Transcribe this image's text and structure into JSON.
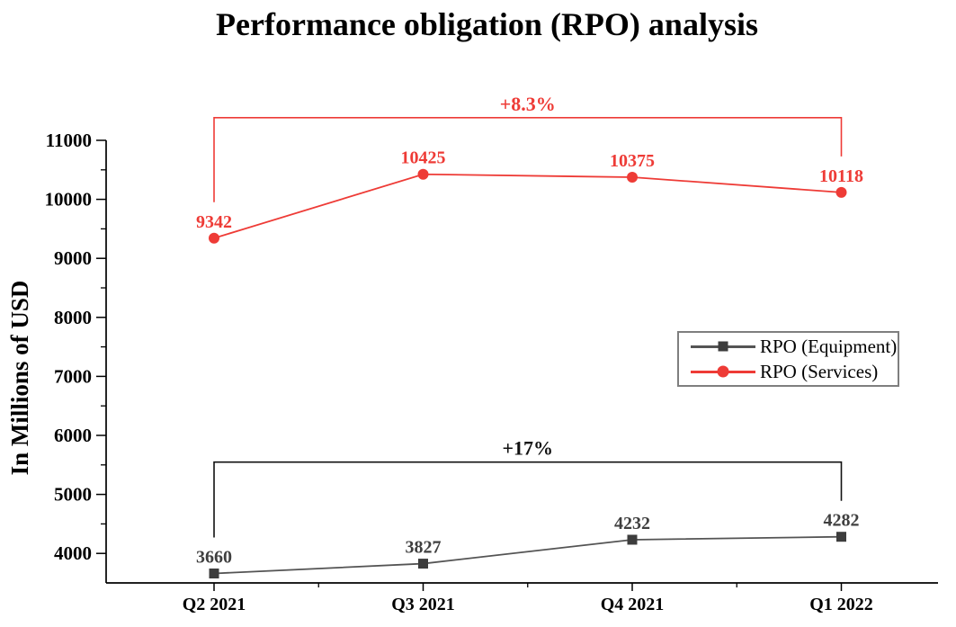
{
  "title": "Performance obligation (RPO) analysis",
  "chart_data": {
    "type": "line",
    "categories": [
      "Q2 2021",
      "Q3 2021",
      "Q4 2021",
      "Q1 2022"
    ],
    "series": [
      {
        "name": "RPO (Equipment)",
        "marker": "square",
        "marker_color": "#3d3d3d",
        "line_color": "#545454",
        "label_color": "#3f3f3f",
        "values": [
          3660,
          3827,
          4232,
          4282
        ]
      },
      {
        "name": "RPO (Services)",
        "marker": "circle",
        "marker_color": "#ee3b36",
        "line_color": "#ee3b36",
        "label_color": "#ee3b36",
        "values": [
          9342,
          10425,
          10375,
          10118
        ]
      }
    ],
    "xlabel": "",
    "ylabel": "In Millions of USD",
    "ylim": [
      3500,
      11000
    ],
    "yticks": [
      4000,
      5000,
      6000,
      7000,
      8000,
      9000,
      10000,
      11000
    ],
    "grid": false,
    "legend_position": "middle-right",
    "annotations": [
      {
        "text": "+17%",
        "series": 0,
        "from": 0,
        "to": 3,
        "color": "#111111"
      },
      {
        "text": "+8.3%",
        "series": 1,
        "from": 0,
        "to": 3,
        "color": "#ee3b36"
      }
    ]
  }
}
